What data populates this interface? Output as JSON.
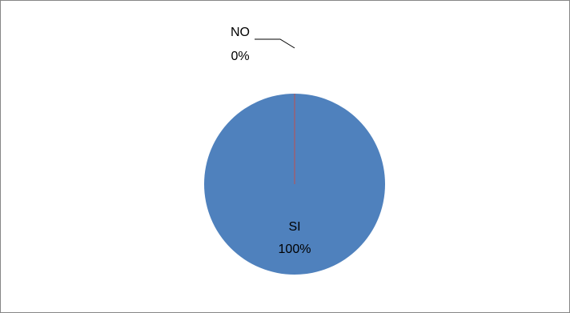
{
  "chart_data": {
    "type": "pie",
    "categories": [
      "SI",
      "NO"
    ],
    "series": [
      {
        "values": [
          100,
          0
        ],
        "value_labels": [
          "100%",
          "0%"
        ],
        "colors": [
          "#4f81bd",
          "#c0504d"
        ]
      }
    ]
  }
}
